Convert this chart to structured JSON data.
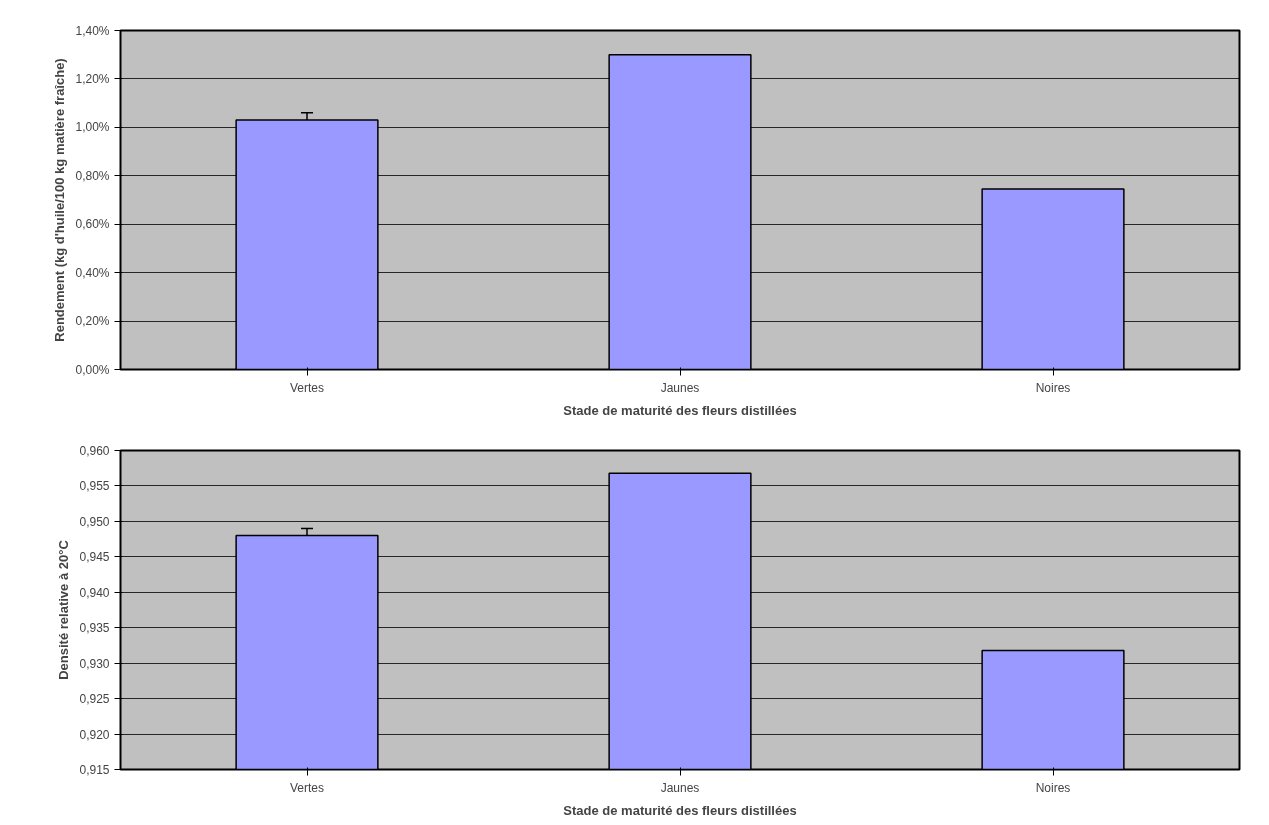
{
  "chart_data": [
    {
      "type": "bar",
      "ylabel": "Rendement (kg d'huile/100 kg matière fraîche)",
      "xlabel": "Stade de maturité des fleurs distillées",
      "categories": [
        "Vertes",
        "Jaunes",
        "Noires"
      ],
      "values": [
        1.03,
        1.3,
        0.745
      ],
      "errors": [
        0.03,
        null,
        null
      ],
      "color": "#9999ff",
      "ylim": [
        0,
        1.4
      ],
      "yticks": [
        {
          "value": 0,
          "label": "0,00%"
        },
        {
          "value": 0.2,
          "label": "0,20%"
        },
        {
          "value": 0.4,
          "label": "0,40%"
        },
        {
          "value": 0.6,
          "label": "0,60%"
        },
        {
          "value": 0.8,
          "label": "0,80%"
        },
        {
          "value": 1.0,
          "label": "1,00%"
        },
        {
          "value": 1.2,
          "label": "1,20%"
        },
        {
          "value": 1.4,
          "label": "1,40%"
        }
      ],
      "grid": "y"
    },
    {
      "type": "bar",
      "ylabel": "Densité relative à 20°C",
      "xlabel": "Stade de maturité des fleurs distillées",
      "categories": [
        "Vertes",
        "Jaunes",
        "Noires"
      ],
      "values": [
        0.948,
        0.9568,
        0.9318
      ],
      "errors": [
        0.001,
        null,
        null
      ],
      "color": "#9999ff",
      "ylim": [
        0.915,
        0.96
      ],
      "yticks": [
        {
          "value": 0.915,
          "label": "0,915"
        },
        {
          "value": 0.92,
          "label": "0,920"
        },
        {
          "value": 0.925,
          "label": "0,925"
        },
        {
          "value": 0.93,
          "label": "0,930"
        },
        {
          "value": 0.935,
          "label": "0,935"
        },
        {
          "value": 0.94,
          "label": "0,940"
        },
        {
          "value": 0.945,
          "label": "0,945"
        },
        {
          "value": 0.95,
          "label": "0,950"
        },
        {
          "value": 0.955,
          "label": "0,955"
        },
        {
          "value": 0.96,
          "label": "0,960"
        }
      ],
      "grid": "y"
    }
  ]
}
